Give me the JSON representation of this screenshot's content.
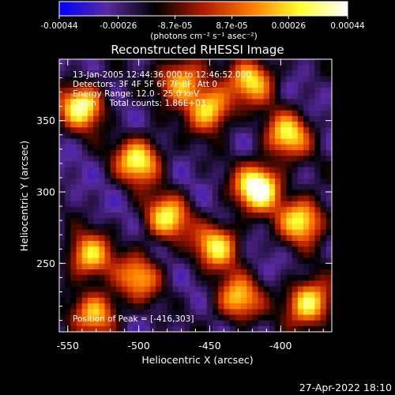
{
  "chart_data": {
    "type": "heatmap",
    "title": "Reconstructed RHESSI Image",
    "xlabel": "Heliocentric X (arcsec)",
    "ylabel": "Heliocentric Y (arcsec)",
    "xlim": [
      -556,
      -364
    ],
    "ylim": [
      202,
      393
    ],
    "x_ticks": [
      "-550",
      "-500",
      "-450",
      "-400"
    ],
    "x_tick_values": [
      -550,
      -500,
      -450,
      -400
    ],
    "y_ticks": [
      "250",
      "300",
      "350"
    ],
    "y_tick_values": [
      250,
      300,
      350
    ],
    "colorbar": {
      "tick_labels": [
        "-0.00044",
        "-0.00026",
        "-8.7e-05",
        "8.7e-05",
        "0.00026",
        "0.00044"
      ],
      "tick_values": [
        -0.00044,
        -0.00026,
        -8.7e-05,
        8.7e-05,
        0.00026,
        0.00044
      ],
      "range": [
        -0.00044,
        0.00044
      ],
      "unit_label": "(photons cm⁻² s⁻¹ asec⁻²)",
      "colormap": [
        "#0000ff",
        "#5a2aa0",
        "#000000",
        "#b01a00",
        "#ff7a00",
        "#ffff30",
        "#ffffff"
      ]
    },
    "annotations": {
      "time_range": "13-Jan-2005 12:44:36.000 to 12:46:52.000",
      "detectors": "Detectors: 3F 4F 5F 6F 7F 8F, Att 0",
      "energy_range": "Energy Range: 12.0 - 25.0 keV",
      "clean": "Clean     Total counts: 1.86E+03",
      "peak": "Position of Peak = [-416,303]"
    },
    "peak_position": [
      -416,
      303
    ],
    "bright_sources": [
      {
        "x": -416,
        "y": 303,
        "value": 0.00044
      },
      {
        "x": -540,
        "y": 360,
        "value": 0.0003
      },
      {
        "x": -500,
        "y": 322,
        "value": 0.00028
      },
      {
        "x": -450,
        "y": 358,
        "value": 0.00024
      },
      {
        "x": -385,
        "y": 280,
        "value": 0.00026
      },
      {
        "x": -380,
        "y": 222,
        "value": 0.0003
      },
      {
        "x": -445,
        "y": 262,
        "value": 0.00022
      },
      {
        "x": -535,
        "y": 255,
        "value": 0.0002
      },
      {
        "x": -480,
        "y": 282,
        "value": 0.00022
      },
      {
        "x": -395,
        "y": 340,
        "value": 0.00022
      },
      {
        "x": -470,
        "y": 378,
        "value": 0.00018
      },
      {
        "x": -430,
        "y": 225,
        "value": 0.00018
      },
      {
        "x": -530,
        "y": 215,
        "value": 0.00016
      },
      {
        "x": -500,
        "y": 240,
        "value": 0.00012
      },
      {
        "x": -420,
        "y": 378,
        "value": 0.0002
      }
    ]
  },
  "footer": {
    "timestamp": "27-Apr-2022 18:10"
  }
}
